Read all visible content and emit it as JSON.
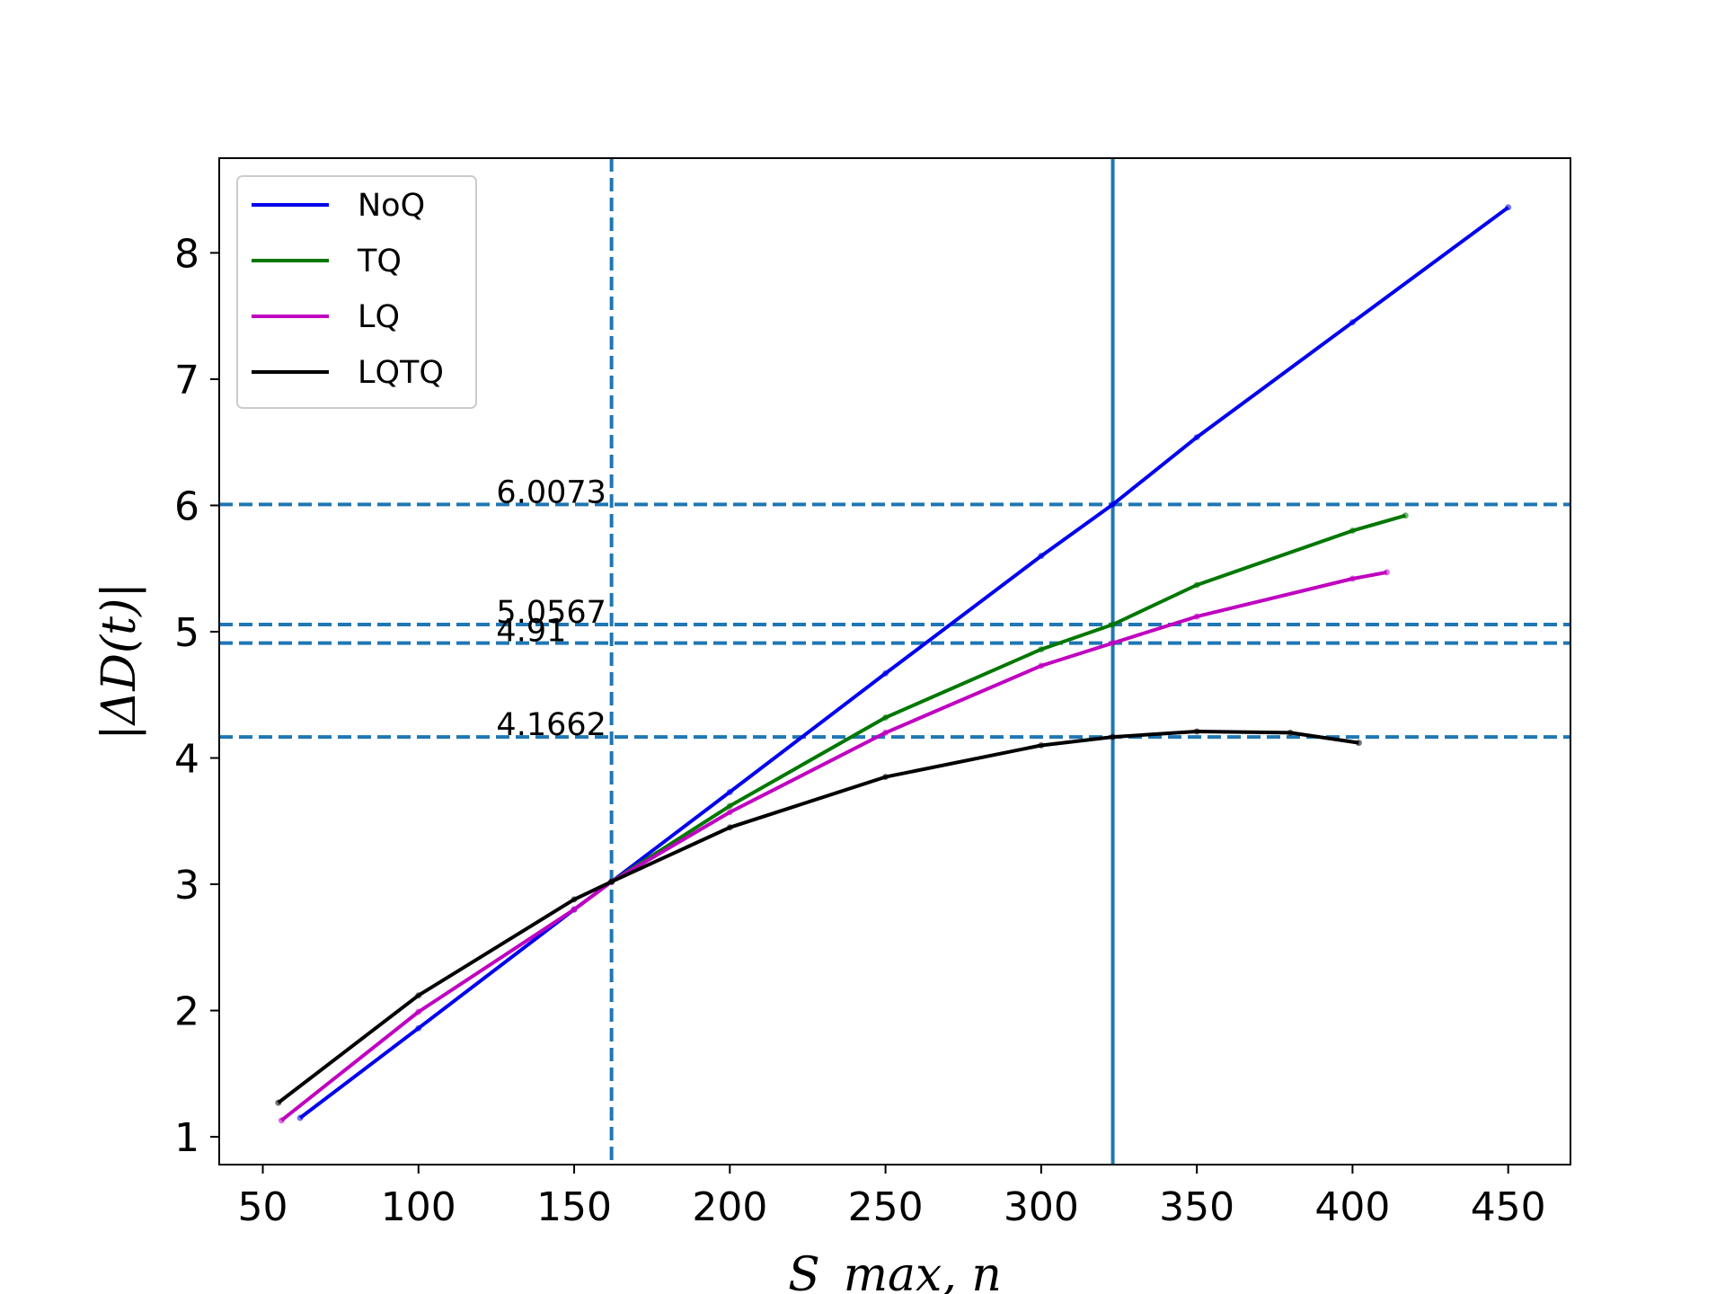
{
  "chart_data": {
    "type": "line",
    "xlabel": "S_max, n",
    "ylabel": "|ΔD(t)|",
    "xlim": [
      36,
      470
    ],
    "ylim": [
      0.78,
      8.75
    ],
    "x_ticks": [
      50,
      100,
      150,
      200,
      250,
      300,
      350,
      400,
      450
    ],
    "y_ticks": [
      1,
      2,
      3,
      4,
      5,
      6,
      7,
      8
    ],
    "legend": {
      "placement": "top-left"
    },
    "grid": false,
    "series": [
      {
        "name": "NoQ",
        "color": "#0000ee",
        "x": [
          62,
          100,
          150,
          162,
          200,
          250,
          300,
          323,
          350,
          400,
          450
        ],
        "y": [
          1.15,
          1.86,
          2.8,
          3.02,
          3.73,
          4.67,
          5.6,
          6.0073,
          6.54,
          7.45,
          8.36
        ]
      },
      {
        "name": "TQ",
        "color": "#007700",
        "x": [
          162,
          200,
          250,
          300,
          323,
          350,
          400,
          417
        ],
        "y": [
          3.02,
          3.62,
          4.32,
          4.86,
          5.0567,
          5.37,
          5.8,
          5.92
        ]
      },
      {
        "name": "LQ",
        "color": "#c000c0",
        "x": [
          56,
          100,
          150,
          162,
          200,
          250,
          300,
          323,
          350,
          400,
          411
        ],
        "y": [
          1.13,
          1.99,
          2.8,
          3.02,
          3.57,
          4.2,
          4.73,
          4.91,
          5.12,
          5.42,
          5.47
        ]
      },
      {
        "name": "LQTQ",
        "color": "#000000",
        "x": [
          55,
          100,
          150,
          162,
          200,
          250,
          300,
          323,
          350,
          380,
          402
        ],
        "y": [
          1.27,
          2.12,
          2.88,
          3.02,
          3.45,
          3.85,
          4.1,
          4.1662,
          4.21,
          4.2,
          4.12
        ]
      }
    ],
    "reference_lines": {
      "horizontal_dashed": [
        6.0073,
        5.0567,
        4.91,
        4.1662
      ],
      "vertical_dashed": [
        162
      ],
      "vertical_solid": [
        323
      ],
      "color": "#1f77b4"
    },
    "annotations": [
      {
        "text": "6.0073",
        "x": 125,
        "y": 6.0073
      },
      {
        "text": "5.0567",
        "x": 125,
        "y": 5.0567
      },
      {
        "text": "4.91",
        "x": 125,
        "y": 4.91
      },
      {
        "text": "4.1662",
        "x": 125,
        "y": 4.1662
      }
    ]
  }
}
